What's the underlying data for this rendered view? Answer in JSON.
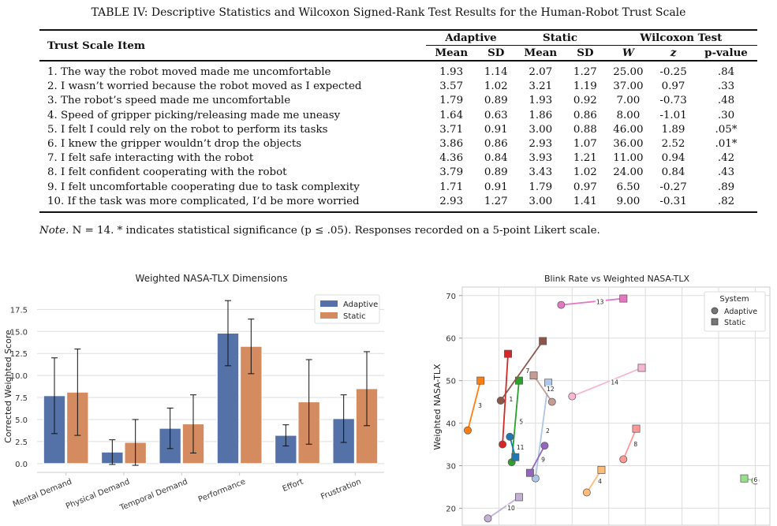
{
  "caption": "TABLE IV: Descriptive Statistics and Wilcoxon Signed-Rank Test Results for the Human-Robot Trust Scale",
  "table": {
    "item_header": "Trust Scale Item",
    "groups": [
      "Adaptive",
      "Static",
      "Wilcoxon Test"
    ],
    "subheaders": [
      "Mean",
      "SD",
      "Mean",
      "SD",
      "W",
      "z",
      "p-value"
    ],
    "rows": [
      [
        "1. The way the robot moved made me uncomfortable",
        "1.93",
        "1.14",
        "2.07",
        "1.27",
        "25.00",
        "-0.25",
        ".84"
      ],
      [
        "2. I wasn’t worried because the robot moved as I expected",
        "3.57",
        "1.02",
        "3.21",
        "1.19",
        "37.00",
        "0.97",
        ".33"
      ],
      [
        "3. The robot’s speed made me uncomfortable",
        "1.79",
        "0.89",
        "1.93",
        "0.92",
        "7.00",
        "-0.73",
        ".48"
      ],
      [
        "4. Speed of gripper picking/releasing made me uneasy",
        "1.64",
        "0.63",
        "1.86",
        "0.86",
        "8.00",
        "-1.01",
        ".30"
      ],
      [
        "5. I felt I could rely on the robot to perform its tasks",
        "3.71",
        "0.91",
        "3.00",
        "0.88",
        "46.00",
        "1.89",
        ".05*"
      ],
      [
        "6. I knew the gripper wouldn’t drop the objects",
        "3.86",
        "0.86",
        "2.93",
        "1.07",
        "36.00",
        "2.52",
        ".01*"
      ],
      [
        "7. I felt safe interacting with the robot",
        "4.36",
        "0.84",
        "3.93",
        "1.21",
        "11.00",
        "0.94",
        ".42"
      ],
      [
        "8. I felt confident cooperating with the robot",
        "3.79",
        "0.89",
        "3.43",
        "1.02",
        "24.00",
        "0.84",
        ".43"
      ],
      [
        "9. I felt uncomfortable cooperating due to task complexity",
        "1.71",
        "0.91",
        "1.79",
        "0.97",
        "6.50",
        "-0.27",
        ".89"
      ],
      [
        "10. If the task was more complicated, I’d be more worried",
        "2.93",
        "1.27",
        "3.00",
        "1.41",
        "9.00",
        "-0.31",
        ".82"
      ]
    ]
  },
  "note": {
    "label": "Note.",
    "text": " N = 14. * indicates statistical significance (p ≤ .05). Responses recorded on a 5-point Likert scale."
  },
  "colors": {
    "adaptive": "#5472a8",
    "static": "#d48b5f"
  },
  "chart_data": [
    {
      "type": "bar",
      "title": "Weighted NASA-TLX Dimensions",
      "xlabel": "",
      "ylabel": "Corrected Weighted Score",
      "categories": [
        "Mental Demand",
        "Physical Demand",
        "Temporal Demand",
        "Performance",
        "Effort",
        "Frustration"
      ],
      "series": [
        {
          "name": "Adaptive",
          "values": [
            7.7,
            1.3,
            4.0,
            14.8,
            3.2,
            5.1
          ],
          "err": [
            4.3,
            1.4,
            2.3,
            3.7,
            1.2,
            2.7
          ]
        },
        {
          "name": "Static",
          "values": [
            8.1,
            2.4,
            4.5,
            13.3,
            7.0,
            8.5
          ],
          "err": [
            4.9,
            2.6,
            3.3,
            3.1,
            4.8,
            4.2
          ]
        }
      ],
      "yticks": [
        "0.0",
        "2.5",
        "5.0",
        "7.5",
        "10.0",
        "12.5",
        "15.0",
        "17.5"
      ],
      "ylim": [
        -1,
        19.5
      ],
      "grid": true,
      "legend": "top-right"
    },
    {
      "type": "scatter",
      "title": "Blink Rate vs Weighted NASA-TLX",
      "xlabel": "",
      "ylabel": "Weighted NASA-TLX",
      "yticks": [
        "20",
        "30",
        "40",
        "50",
        "60",
        "70"
      ],
      "ylim": [
        16,
        72
      ],
      "xlim": [
        0,
        8.4
      ],
      "grid": true,
      "legend_title": "System",
      "legend": [
        "Adaptive",
        "Static"
      ],
      "legend_placement": "top-right",
      "pairs": [
        {
          "id": "1",
          "color": "#d62728",
          "adaptive": [
            1.1,
            35.0
          ],
          "static": [
            1.25,
            56.3
          ]
        },
        {
          "id": "2",
          "color": "#aec7e8",
          "adaptive": [
            2.0,
            27.0
          ],
          "static": [
            2.35,
            49.5
          ]
        },
        {
          "id": "3",
          "color": "#ff7f0e",
          "adaptive": [
            0.15,
            38.3
          ],
          "static": [
            0.5,
            50.0
          ]
        },
        {
          "id": "4",
          "color": "#ffbb78",
          "adaptive": [
            3.4,
            23.7
          ],
          "static": [
            3.8,
            29.0
          ]
        },
        {
          "id": "5",
          "color": "#2ca02c",
          "adaptive": [
            1.35,
            30.8
          ],
          "static": [
            1.55,
            50.0
          ]
        },
        {
          "id": "6",
          "color": "#98df8a",
          "adaptive": [
            8.0,
            26.5
          ],
          "static": [
            7.7,
            27.0
          ]
        },
        {
          "id": "7",
          "color": "#8c564b",
          "adaptive": [
            1.05,
            45.3
          ],
          "static": [
            2.2,
            59.3
          ]
        },
        {
          "id": "8",
          "color": "#ff9896",
          "adaptive": [
            4.4,
            31.5
          ],
          "static": [
            4.75,
            38.7
          ]
        },
        {
          "id": "9",
          "color": "#9467bd",
          "adaptive": [
            2.25,
            34.7
          ],
          "static": [
            1.85,
            28.3
          ]
        },
        {
          "id": "10",
          "color": "#c5b0d5",
          "adaptive": [
            0.7,
            17.6
          ],
          "static": [
            1.55,
            22.6
          ]
        },
        {
          "id": "11",
          "color": "#1f77b4",
          "adaptive": [
            1.3,
            36.8
          ],
          "static": [
            1.45,
            32.0
          ]
        },
        {
          "id": "12",
          "color": "#c49c94",
          "adaptive": [
            2.45,
            45.0
          ],
          "static": [
            1.95,
            51.2
          ]
        },
        {
          "id": "13",
          "color": "#e377c2",
          "adaptive": [
            2.7,
            67.8
          ],
          "static": [
            4.4,
            69.3
          ]
        },
        {
          "id": "14",
          "color": "#f7b6d2",
          "adaptive": [
            3.0,
            46.3
          ],
          "static": [
            4.9,
            53.0
          ]
        }
      ]
    }
  ]
}
